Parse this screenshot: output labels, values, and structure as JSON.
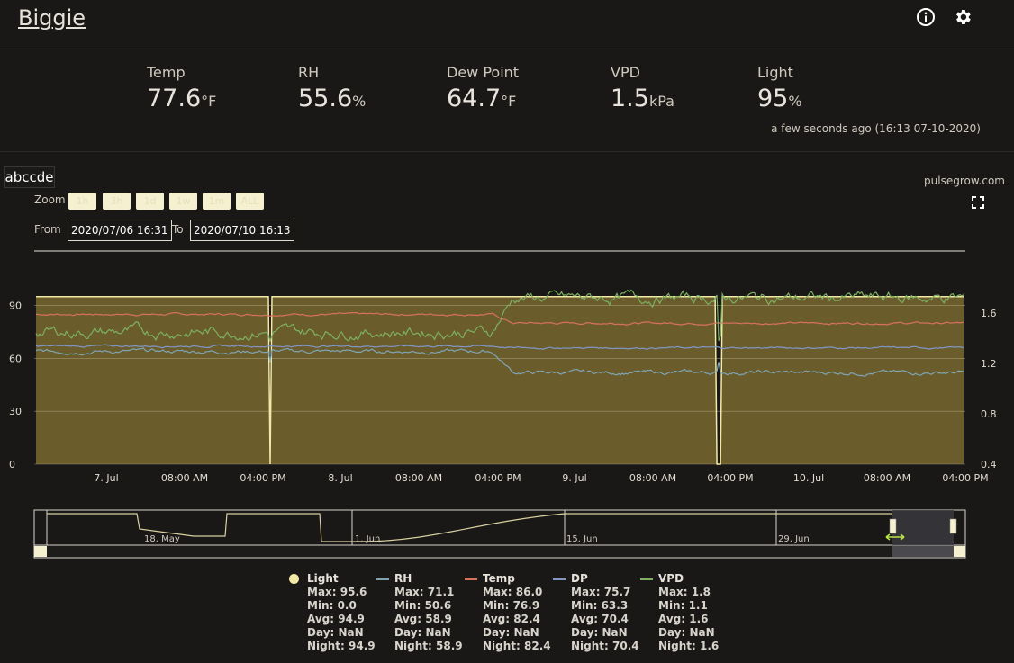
{
  "header": {
    "title": "Biggie",
    "info_icon": "info-icon",
    "settings_icon": "gear-icon"
  },
  "metrics": [
    {
      "label": "Temp",
      "value": "77.6",
      "unit": "°F"
    },
    {
      "label": "RH",
      "value": "55.6",
      "unit": "%"
    },
    {
      "label": "Dew Point",
      "value": "64.7",
      "unit": "°F"
    },
    {
      "label": "VPD",
      "value": "1.5",
      "unit": "kPa"
    },
    {
      "label": "Light",
      "value": "95",
      "unit": "%"
    }
  ],
  "updated": "a few seconds ago (16:13 07-10-2020)",
  "device_tag": "abccde",
  "credit": "pulsegrow.com",
  "zoom": {
    "label": "Zoom",
    "buttons": [
      "1h",
      "3h",
      "1d",
      "1w",
      "1m",
      "ALL"
    ]
  },
  "range": {
    "from_label": "From",
    "from": "2020/07/06 16:31",
    "to_label": "To",
    "to": "2020/07/10 16:13"
  },
  "chart_data": {
    "type": "line",
    "y_left": {
      "ticks": [
        "0",
        "30",
        "60",
        "90"
      ],
      "range": [
        0,
        100
      ]
    },
    "y_right": {
      "ticks": [
        "0.4",
        "0.8",
        "1.2",
        "1.6"
      ],
      "range": [
        0.4,
        1.8
      ]
    },
    "x_ticks": [
      "7. Jul",
      "08:00 AM",
      "04:00 PM",
      "8. Jul",
      "08:00 AM",
      "04:00 PM",
      "9. Jul",
      "08:00 AM",
      "04:00 PM",
      "10. Jul",
      "08:00 AM",
      "04:00 PM"
    ],
    "navigator_ticks": [
      "18. May",
      "1. Jun",
      "15. Jun",
      "29. Jun"
    ],
    "series": [
      {
        "name": "Light",
        "color": "#f3e9a6",
        "approx": {
          "typical": 95,
          "dips_to_zero": 2
        }
      },
      {
        "name": "RH",
        "color": "#7fa5b3",
        "approx": {
          "day1": 65,
          "day3": 52
        }
      },
      {
        "name": "Temp",
        "color": "#d7725c",
        "approx": {
          "day1": 85,
          "day3": 80
        }
      },
      {
        "name": "DP",
        "color": "#8197c6",
        "approx": {
          "day1": 75,
          "day3": 65
        }
      },
      {
        "name": "VPD",
        "color": "#7cb160",
        "approx": {
          "day1": 1.45,
          "day3": 1.7
        }
      }
    ]
  },
  "legend": [
    {
      "name": "Light",
      "color": "#f3e9a6",
      "symbol": "dot",
      "max": "Max: 95.6",
      "min": "Min: 0.0",
      "avg": "Avg: 94.9",
      "day": "Day: NaN",
      "night": "Night: 94.9"
    },
    {
      "name": "RH",
      "color": "#7fa5b3",
      "symbol": "line",
      "max": "Max: 71.1",
      "min": "Min: 50.6",
      "avg": "Avg: 58.9",
      "day": "Day: NaN",
      "night": "Night: 58.9"
    },
    {
      "name": "Temp",
      "color": "#d7725c",
      "symbol": "line",
      "max": "Max: 86.0",
      "min": "Min: 76.9",
      "avg": "Avg: 82.4",
      "day": "Day: NaN",
      "night": "Night: 82.4"
    },
    {
      "name": "DP",
      "color": "#8197c6",
      "symbol": "line",
      "max": "Max: 75.7",
      "min": "Min: 63.3",
      "avg": "Avg: 70.4",
      "day": "Day: NaN",
      "night": "Night: 70.4"
    },
    {
      "name": "VPD",
      "color": "#7cb160",
      "symbol": "line",
      "max": "Max: 1.8",
      "min": "Min: 1.1",
      "avg": "Avg: 1.6",
      "day": "Day: NaN",
      "night": "Night: 1.6"
    }
  ]
}
